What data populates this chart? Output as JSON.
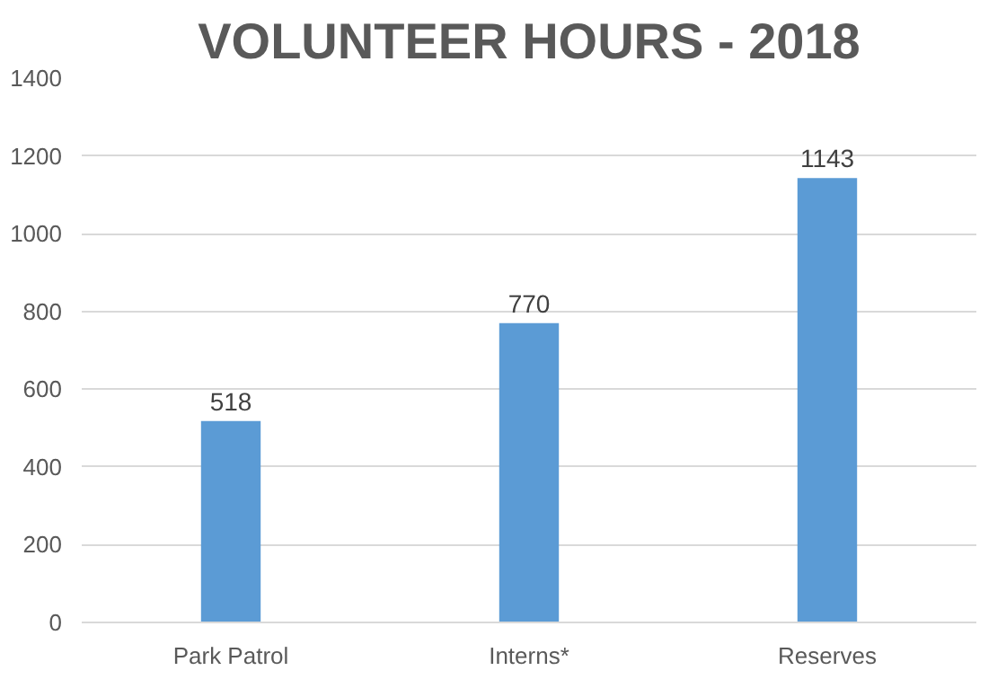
{
  "chart_data": {
    "type": "bar",
    "title": "VOLUNTEER HOURS - 2018",
    "categories": [
      "Park Patrol",
      "Interns*",
      "Reserves"
    ],
    "values": [
      518,
      770,
      1143
    ],
    "color": "#5b9bd5",
    "ylim": [
      0,
      1400
    ],
    "yticks": [
      0,
      200,
      400,
      600,
      800,
      1000,
      1200,
      1400
    ],
    "grid": "y",
    "data_labels": true
  }
}
